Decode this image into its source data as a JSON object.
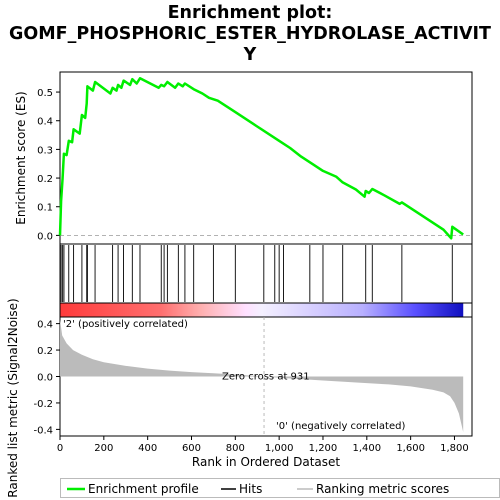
{
  "chart_data": {
    "type": "line",
    "title_lines": [
      "Enrichment plot:",
      "GOMF_PHOSPHORIC_ESTER_HYDROLASE_ACTIVIT",
      "Y"
    ],
    "xlabel": "Rank in Ordered Dataset",
    "ylabel_top": "Enrichment score (ES)",
    "ylabel_bottom": "Ranked list metric (Signal2Noise)",
    "x_range": [
      0,
      1880
    ],
    "x_ticks": [
      0,
      200,
      400,
      600,
      800,
      1000,
      1200,
      1400,
      1600,
      1800
    ],
    "x_tick_labels": [
      "0",
      "200",
      "400",
      "600",
      "800",
      "1,000",
      "1,200",
      "1,400",
      "1,600",
      "1,800"
    ],
    "es_ylim": [
      -0.03,
      0.57
    ],
    "es_ticks": [
      0.0,
      0.1,
      0.2,
      0.3,
      0.4,
      0.5
    ],
    "es_tick_labels": [
      "0.0",
      "0.1",
      "0.2",
      "0.3",
      "0.4",
      "0.5"
    ],
    "metric_ylim": [
      -0.45,
      0.45
    ],
    "metric_ticks": [
      -0.4,
      -0.2,
      0.0,
      0.2,
      0.4
    ],
    "metric_tick_labels": [
      "-0.4",
      "-0.2",
      "0.0",
      "0.2",
      "0.4"
    ],
    "es_curve": [
      [
        0,
        0.0
      ],
      [
        5,
        0.12
      ],
      [
        12,
        0.2
      ],
      [
        18,
        0.285
      ],
      [
        30,
        0.28
      ],
      [
        40,
        0.33
      ],
      [
        55,
        0.325
      ],
      [
        62,
        0.37
      ],
      [
        90,
        0.355
      ],
      [
        100,
        0.42
      ],
      [
        115,
        0.41
      ],
      [
        122,
        0.46
      ],
      [
        125,
        0.52
      ],
      [
        150,
        0.505
      ],
      [
        160,
        0.535
      ],
      [
        230,
        0.495
      ],
      [
        240,
        0.515
      ],
      [
        258,
        0.505
      ],
      [
        265,
        0.525
      ],
      [
        280,
        0.515
      ],
      [
        290,
        0.54
      ],
      [
        320,
        0.525
      ],
      [
        330,
        0.545
      ],
      [
        350,
        0.53
      ],
      [
        365,
        0.548
      ],
      [
        450,
        0.515
      ],
      [
        462,
        0.525
      ],
      [
        475,
        0.52
      ],
      [
        490,
        0.535
      ],
      [
        525,
        0.515
      ],
      [
        540,
        0.53
      ],
      [
        560,
        0.52
      ],
      [
        570,
        0.53
      ],
      [
        610,
        0.51
      ],
      [
        650,
        0.495
      ],
      [
        680,
        0.48
      ],
      [
        720,
        0.47
      ],
      [
        800,
        0.43
      ],
      [
        900,
        0.38
      ],
      [
        1000,
        0.33
      ],
      [
        1050,
        0.305
      ],
      [
        1100,
        0.275
      ],
      [
        1150,
        0.25
      ],
      [
        1200,
        0.225
      ],
      [
        1260,
        0.205
      ],
      [
        1290,
        0.185
      ],
      [
        1350,
        0.16
      ],
      [
        1390,
        0.135
      ],
      [
        1395,
        0.155
      ],
      [
        1410,
        0.148
      ],
      [
        1425,
        0.162
      ],
      [
        1480,
        0.14
      ],
      [
        1550,
        0.11
      ],
      [
        1560,
        0.115
      ],
      [
        1650,
        0.07
      ],
      [
        1750,
        0.02
      ],
      [
        1785,
        -0.01
      ],
      [
        1790,
        0.03
      ],
      [
        1840,
        0.003
      ]
    ],
    "hits": [
      5,
      12,
      18,
      40,
      62,
      100,
      122,
      125,
      160,
      240,
      265,
      290,
      330,
      365,
      462,
      475,
      490,
      540,
      570,
      610,
      700,
      800,
      930,
      980,
      1000,
      1020,
      1140,
      1200,
      1290,
      1395,
      1425,
      1560,
      1790
    ],
    "metric_profile": [
      [
        0,
        0.43
      ],
      [
        10,
        0.31
      ],
      [
        30,
        0.25
      ],
      [
        60,
        0.2
      ],
      [
        100,
        0.165
      ],
      [
        150,
        0.13
      ],
      [
        200,
        0.108
      ],
      [
        300,
        0.08
      ],
      [
        400,
        0.06
      ],
      [
        500,
        0.045
      ],
      [
        600,
        0.033
      ],
      [
        700,
        0.025
      ],
      [
        800,
        0.015
      ],
      [
        931,
        0.0
      ],
      [
        1000,
        -0.01
      ],
      [
        1200,
        -0.03
      ],
      [
        1400,
        -0.05
      ],
      [
        1500,
        -0.06
      ],
      [
        1600,
        -0.075
      ],
      [
        1700,
        -0.1
      ],
      [
        1750,
        -0.12
      ],
      [
        1780,
        -0.15
      ],
      [
        1800,
        -0.2
      ],
      [
        1820,
        -0.28
      ],
      [
        1840,
        -0.42
      ]
    ],
    "zero_cross_rank": 931,
    "zero_cross_label": "Zero cross at 931",
    "pos_label": "'2' (positively correlated)",
    "neg_label": "'0' (negatively correlated)",
    "n_genes": 1840,
    "colors": {
      "es_line": "#00ee00",
      "hit_line": "#000000",
      "metric_fill": "#bbbbbb",
      "pos_color": "#ff0000",
      "neg_color": "#0000ff",
      "pos_label_color": "#ff0000",
      "neg_label_color": "#0000cc"
    },
    "legend": [
      "Enrichment profile",
      "Hits",
      "Ranking metric scores"
    ]
  }
}
